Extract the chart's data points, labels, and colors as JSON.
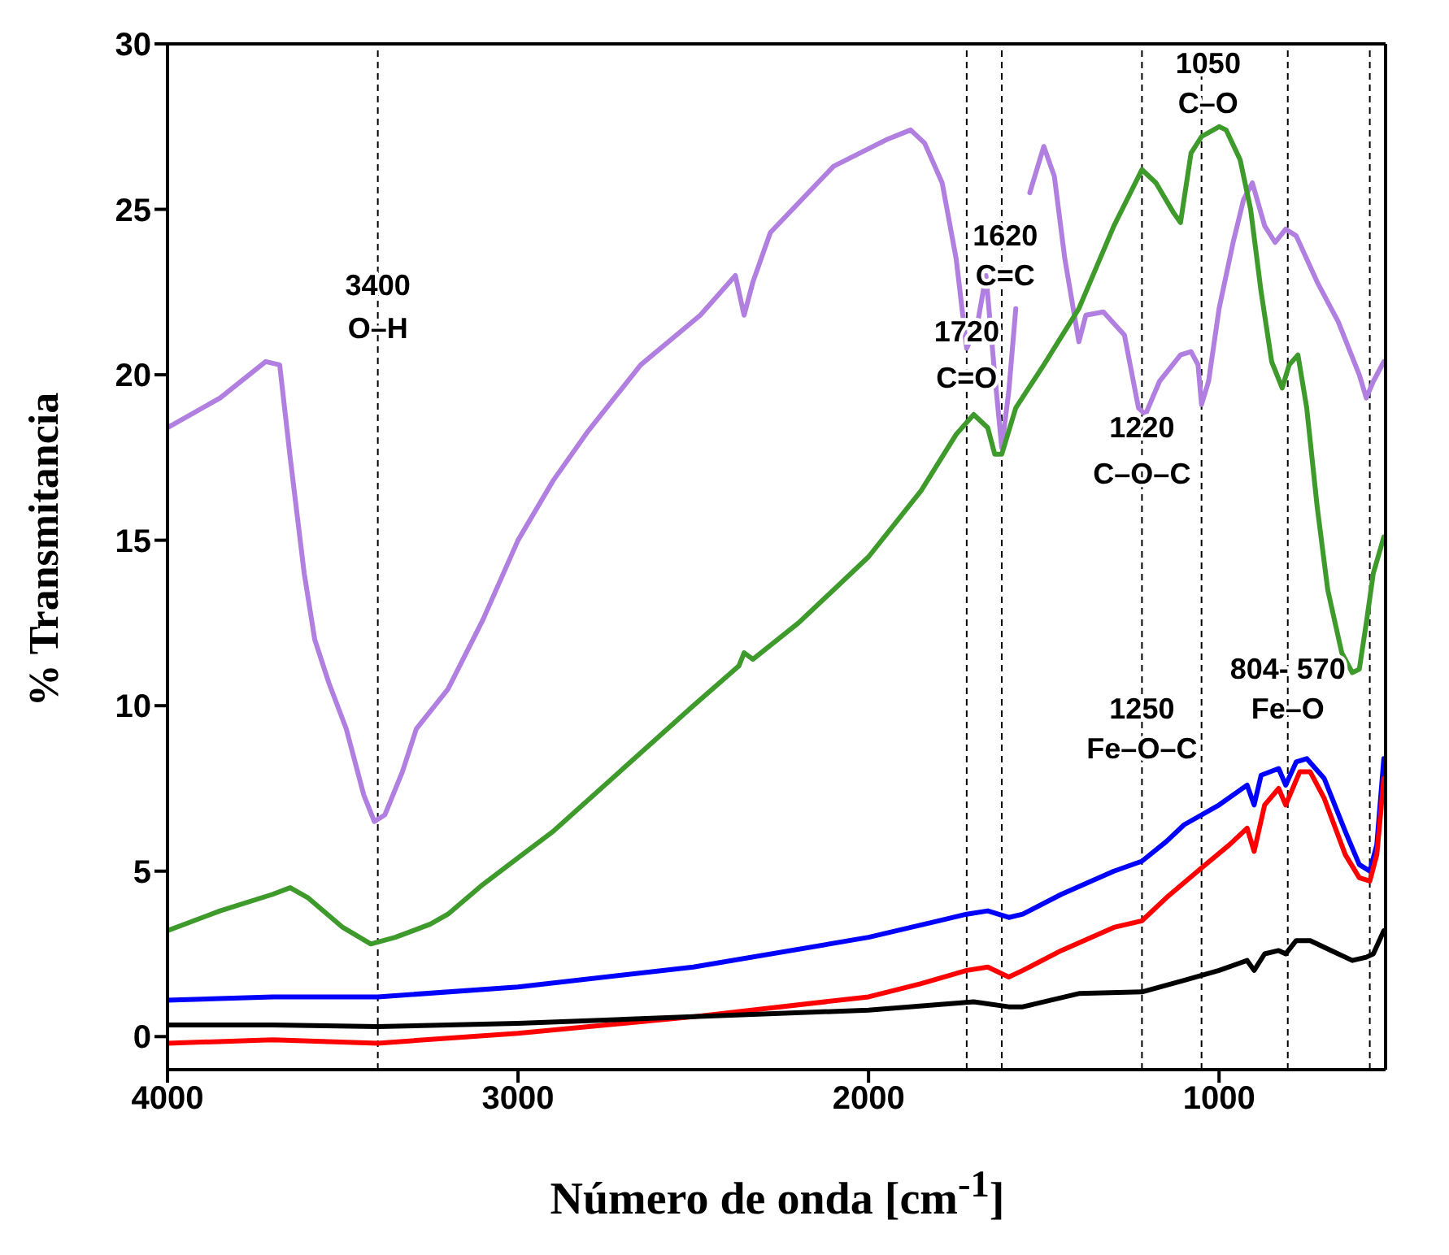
{
  "chart_data": {
    "type": "line",
    "xlabel": "Número de onda [cm$^{-1}$]",
    "ylabel": "% Transmitancia",
    "xlim": [
      4000,
      525
    ],
    "xticks": [
      4000,
      3000,
      2000,
      1000
    ],
    "ylim": [
      -1,
      30
    ],
    "yticks": [
      0,
      5,
      10,
      15,
      20,
      25,
      30
    ],
    "marker": "none",
    "line_style": "solid",
    "series": [
      {
        "color": "#b07fe0",
        "x": [
          4000,
          3850,
          3720,
          3680,
          3650,
          3610,
          3580,
          3540,
          3490,
          3440,
          3410,
          3380,
          3330,
          3290,
          3200,
          3100,
          3000,
          2900,
          2800,
          2650,
          2480,
          2380,
          2355,
          2330,
          2280,
          2100,
          1950,
          1880,
          1840,
          1790,
          1750,
          1720,
          1690,
          1665,
          1640,
          1620,
          1600,
          1580,
          1560,
          1540,
          1500,
          1470,
          1440,
          1400,
          1380,
          1330,
          1270,
          1230,
          1210,
          1170,
          1110,
          1080,
          1060,
          1050,
          1030,
          1000,
          960,
          930,
          905,
          870,
          840,
          810,
          780,
          720,
          660,
          600,
          580,
          560,
          530
        ],
        "values": [
          18.4,
          19.3,
          20.4,
          20.3,
          17.5,
          14.0,
          12.0,
          10.7,
          9.3,
          7.3,
          6.5,
          6.7,
          8.0,
          9.3,
          10.5,
          12.6,
          15.0,
          16.8,
          18.3,
          20.3,
          21.8,
          23.0,
          21.8,
          22.8,
          24.3,
          26.3,
          27.1,
          27.4,
          27.0,
          25.8,
          23.5,
          20.8,
          21.5,
          23.0,
          20.0,
          17.8,
          19.5,
          22.0,
          null,
          25.5,
          26.9,
          26.0,
          23.5,
          21.0,
          21.8,
          21.9,
          21.2,
          19.0,
          18.8,
          19.8,
          20.6,
          20.7,
          20.3,
          19.1,
          19.8,
          22.0,
          24.0,
          25.3,
          25.8,
          24.5,
          24.0,
          24.4,
          24.2,
          22.8,
          21.6,
          20.0,
          19.3,
          19.8,
          20.4
        ]
      },
      {
        "color": "#3d9a2b",
        "x": [
          4000,
          3850,
          3700,
          3650,
          3600,
          3500,
          3420,
          3350,
          3250,
          3200,
          3100,
          3000,
          2900,
          2700,
          2500,
          2370,
          2355,
          2330,
          2200,
          2000,
          1850,
          1750,
          1700,
          1660,
          1640,
          1620,
          1580,
          1500,
          1400,
          1300,
          1220,
          1180,
          1130,
          1110,
          1080,
          1050,
          1000,
          980,
          940,
          910,
          880,
          850,
          820,
          800,
          775,
          750,
          720,
          690,
          650,
          620,
          600,
          580,
          560,
          530
        ],
        "values": [
          3.2,
          3.8,
          4.3,
          4.5,
          4.2,
          3.3,
          2.8,
          3.0,
          3.4,
          3.7,
          4.6,
          5.4,
          6.2,
          8.1,
          10.0,
          11.2,
          11.6,
          11.4,
          12.5,
          14.5,
          16.5,
          18.2,
          18.8,
          18.4,
          17.6,
          17.6,
          19.0,
          20.3,
          22.0,
          24.5,
          26.2,
          25.8,
          24.9,
          24.6,
          26.7,
          27.2,
          27.5,
          27.4,
          26.5,
          25.0,
          22.5,
          20.4,
          19.6,
          20.3,
          20.6,
          19.0,
          16.0,
          13.5,
          11.6,
          11.0,
          11.1,
          12.5,
          14.0,
          15.1
        ]
      },
      {
        "color": "#0000ff",
        "x": [
          4000,
          3700,
          3400,
          3000,
          2500,
          2000,
          1800,
          1720,
          1660,
          1600,
          1560,
          1450,
          1300,
          1220,
          1150,
          1100,
          1000,
          920,
          900,
          880,
          830,
          810,
          780,
          750,
          700,
          640,
          600,
          570,
          550,
          530
        ],
        "values": [
          1.1,
          1.2,
          1.2,
          1.5,
          2.1,
          3.0,
          3.5,
          3.7,
          3.8,
          3.6,
          3.7,
          4.3,
          5.0,
          5.3,
          5.9,
          6.4,
          7.0,
          7.6,
          7.0,
          7.9,
          8.1,
          7.6,
          8.3,
          8.4,
          7.8,
          6.2,
          5.2,
          5.0,
          5.8,
          8.4
        ]
      },
      {
        "color": "#ff0000",
        "x": [
          4000,
          3700,
          3400,
          3000,
          2500,
          2000,
          1850,
          1720,
          1660,
          1600,
          1560,
          1450,
          1300,
          1220,
          1150,
          1050,
          970,
          920,
          900,
          870,
          830,
          810,
          770,
          740,
          700,
          640,
          600,
          570,
          550,
          530
        ],
        "values": [
          -0.2,
          -0.1,
          -0.2,
          0.1,
          0.6,
          1.2,
          1.6,
          2.0,
          2.1,
          1.8,
          2.0,
          2.6,
          3.3,
          3.5,
          4.2,
          5.1,
          5.8,
          6.3,
          5.6,
          7.0,
          7.5,
          7.0,
          8.0,
          8.0,
          7.2,
          5.5,
          4.8,
          4.7,
          5.5,
          7.8
        ]
      },
      {
        "color": "#000000",
        "x": [
          4000,
          3700,
          3400,
          3000,
          2500,
          2000,
          1700,
          1600,
          1560,
          1400,
          1220,
          1100,
          1000,
          920,
          900,
          870,
          830,
          810,
          780,
          740,
          680,
          620,
          580,
          560,
          530
        ],
        "values": [
          0.35,
          0.35,
          0.3,
          0.4,
          0.6,
          0.8,
          1.05,
          0.9,
          0.9,
          1.3,
          1.35,
          1.7,
          2.0,
          2.3,
          2.0,
          2.5,
          2.6,
          2.5,
          2.9,
          2.9,
          2.6,
          2.3,
          2.4,
          2.5,
          3.2
        ]
      }
    ],
    "ref_lines": [
      {
        "axis": "x",
        "value": 3400,
        "color": "#000000",
        "line_style": "dashed"
      },
      {
        "axis": "x",
        "value": 1720,
        "color": "#000000",
        "line_style": "dashed"
      },
      {
        "axis": "x",
        "value": 1620,
        "color": "#000000",
        "line_style": "dashed"
      },
      {
        "axis": "x",
        "value": 1220,
        "color": "#000000",
        "line_style": "dashed"
      },
      {
        "axis": "x",
        "value": 1050,
        "color": "#000000",
        "line_style": "dashed"
      },
      {
        "axis": "x",
        "value": 804,
        "color": "#000000",
        "line_style": "dashed"
      },
      {
        "axis": "x",
        "value": 570,
        "color": "#000000",
        "line_style": "dashed"
      }
    ],
    "annotations": [
      {
        "text": "3400",
        "x": 3400,
        "y": 22.7
      },
      {
        "text": "O–H",
        "x": 3400,
        "y": 21.4
      },
      {
        "text": "1720",
        "x": 1720,
        "y": 21.3
      },
      {
        "text": "C=O",
        "x": 1720,
        "y": 19.9
      },
      {
        "text": "1620",
        "x": 1610,
        "y": 24.2
      },
      {
        "text": "C=C",
        "x": 1610,
        "y": 23.0
      },
      {
        "text": "1220",
        "x": 1220,
        "y": 18.4
      },
      {
        "text": "C–O–C",
        "x": 1220,
        "y": 17.0
      },
      {
        "text": "1050",
        "x": 1031,
        "y": 29.4
      },
      {
        "text": "C–O",
        "x": 1031,
        "y": 28.2
      },
      {
        "text": "1250",
        "x": 1220,
        "y": 9.9
      },
      {
        "text": "Fe–O–C",
        "x": 1220,
        "y": 8.7
      },
      {
        "text": "804- 570",
        "x": 804,
        "y": 11.1
      },
      {
        "text": "Fe–O",
        "x": 804,
        "y": 9.9
      }
    ]
  }
}
